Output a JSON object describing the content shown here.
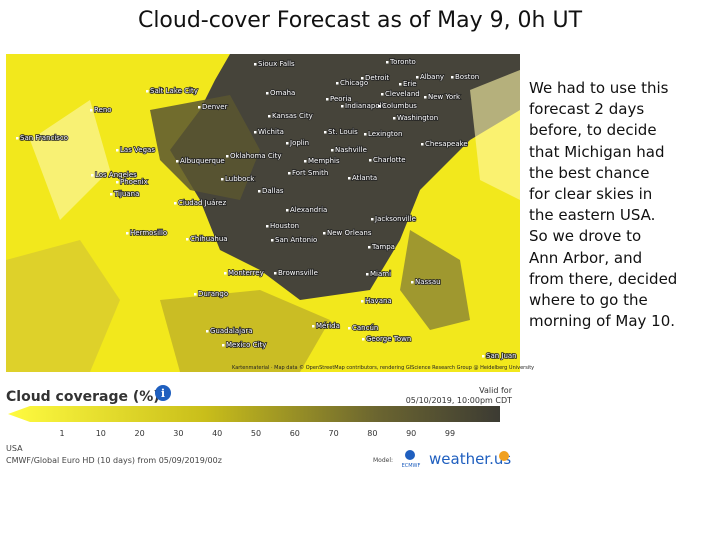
{
  "title": "Cloud-cover Forecast as of May 9, 0h UT",
  "notes": [
    "We had to use this",
    "forecast 2 days",
    "before, to decide",
    "that Michigan had",
    "the best chance",
    "for clear skies in",
    "the eastern USA.",
    "So we drove to",
    "Ann Arbor, and",
    "from there, decided",
    "where to go the",
    "morning of May 10."
  ],
  "map": {
    "cities": [
      "Sioux Falls",
      "Toronto",
      "Chicago",
      "Detroit",
      "Albany",
      "Boston",
      "Salt Lake City",
      "Omaha",
      "Peoria",
      "Cleveland",
      "Erie",
      "New York",
      "Reno",
      "Denver",
      "Indianapolis",
      "Columbus",
      "Kansas City",
      "Washington",
      "San Francisco",
      "Wichita",
      "St. Louis",
      "Lexington",
      "Joplin",
      "Chesapeake",
      "Las Vegas",
      "Albuquerque",
      "Oklahoma City",
      "Memphis",
      "Nashville",
      "Charlotte",
      "Los Angeles",
      "Lubbock",
      "Fort Smith",
      "Atlanta",
      "Phoenix",
      "Tijuana",
      "Dallas",
      "Ciudad Juárez",
      "Alexandria",
      "Jacksonville",
      "Hermosillo",
      "Chihuahua",
      "Houston",
      "New Orleans",
      "San Antonio",
      "Tampa",
      "Monterrey",
      "Brownsville",
      "Miami",
      "Nassau",
      "Durango",
      "Havana",
      "Guadalajara",
      "Mérida",
      "Cancún",
      "Mexico City",
      "George Town",
      "San Juan"
    ],
    "attribution": "Kartenmaterial · Map data © OpenStreetMap contributors, rendering GIScience Research Group @ Heidelberg University"
  },
  "legend": {
    "title": "Cloud coverage (%)",
    "valid_label": "Valid for",
    "valid_time": "05/10/2019, 10:00pm CDT",
    "ticks": [
      1,
      10,
      20,
      30,
      40,
      50,
      60,
      70,
      80,
      90,
      99
    ],
    "region": "USA",
    "source": "CMWF/Global Euro HD (10 days) from 05/09/2019/00z",
    "model_label": "Model:",
    "model_name": "ECMWF",
    "brand": "weather.us"
  }
}
